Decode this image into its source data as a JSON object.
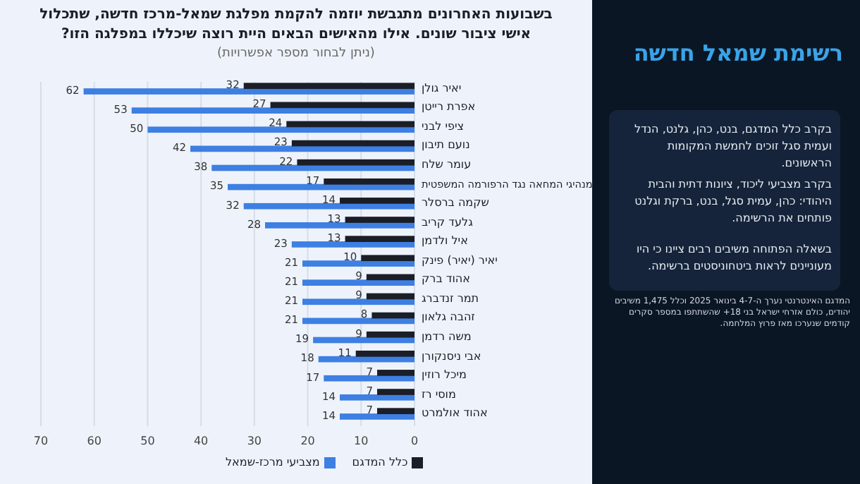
{
  "chart_data": [
    {
      "type": "bar",
      "orientation": "horizontal",
      "title": "בשבועות האחרונים מתגבשת יוזמה להקמת מפלגת שמאל-מרכז חדשה, שתכלול אישי ציבור שונים. אילו מהאישים הבאים היית רוצה שיכללו במפלגה הזו?",
      "subtitle": "(ניתן לבחור מספר אפשרויות)",
      "categories": [
        "יאיר גולן",
        "אפרת רייטן",
        "ציפי לבני",
        "נועם תיבון",
        "עומר שלח",
        "מנהיגי המחאה נגד הרפורמה המשפטית",
        "שקמה ברסלר",
        "גלעד קריב",
        "איל ולדמן",
        "יאיר (יאיר) פינק",
        "אהוד ברק",
        "תמר זנדברג",
        "זהבה גלאון",
        "משה רדמן",
        "אבי ניסנקורן",
        "מיכל רוזין",
        "מוסי רז",
        "אהוד אולמרט"
      ],
      "series": [
        {
          "name": "כלל המדגם",
          "color": "#1b1e26",
          "values": [
            32,
            27,
            24,
            23,
            22,
            17,
            14,
            13,
            13,
            10,
            9,
            9,
            8,
            9,
            11,
            7,
            7,
            7
          ]
        },
        {
          "name": "מצביעי מרכז-שמאל",
          "color": "#3d7fe3",
          "values": [
            62,
            53,
            50,
            42,
            38,
            35,
            32,
            28,
            23,
            21,
            21,
            21,
            21,
            19,
            18,
            17,
            14,
            14
          ]
        }
      ],
      "xlim": [
        70,
        0
      ],
      "xticks": [
        70,
        60,
        50,
        40,
        30,
        20,
        10,
        0
      ],
      "grid": "x",
      "legend": "bottom",
      "data_labels": true
    },
    {
      "type": "other",
      "title": "רשימת שמאל חדשה",
      "annotations": [
        "בקרב כלל המדגם, בנט, כהן, גלנט, הנדל ועמית סגל זוכים לחמשת המקומות הראשונים.",
        "בקרב מצביעי ליכוד, ציונות דתית והבית היהודי: כהן, עמית סגל, בנט, ברקת וגלנט פותחים את הרשימה.",
        "בשאלה הפתוחה משיבים רבים ציינו כי היו מעוניינים לראות ביטחוניסטים ברשימה.",
        "המדגם האינטרנטי נערך ה-4-7 בינואר 2025 וכלל 1,475 משיבים יהודים, כולם אזרחי ישראל בני 18+ שהשתתפו במספר סקרים קודמים שנערכו מאז פרוץ המלחמה."
      ]
    }
  ]
}
